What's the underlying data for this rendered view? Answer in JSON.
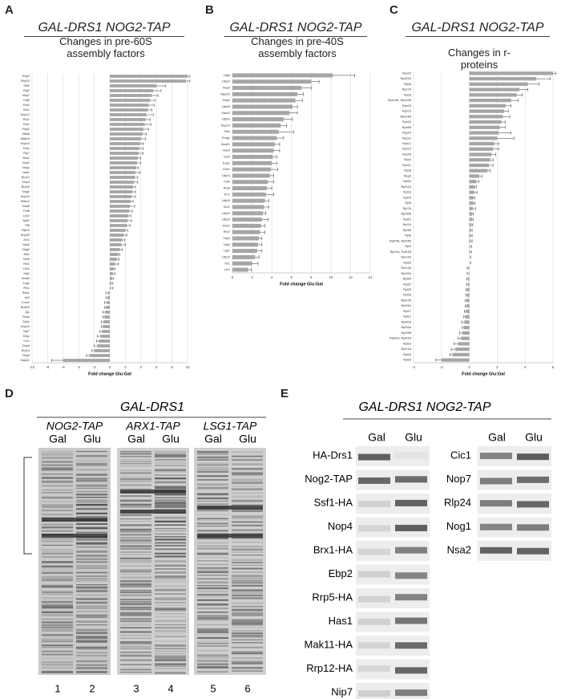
{
  "panel_labels": [
    "A",
    "B",
    "C",
    "D",
    "E"
  ],
  "chart_data": [
    {
      "type": "bar",
      "orientation": "horizontal",
      "title": "GAL-DRS1 NOG2-TAP",
      "subtitle": "Changes in pre-60S assembly factors",
      "xlabel": "Fold change Glu:Gal",
      "color": "#a6a6a6",
      "grid": true,
      "categories": [
        "Ebp2",
        "Dbp10",
        "Ssf1",
        "Rpf2",
        "Nop7",
        "Cbf5",
        "Erb1",
        "Brx1",
        "Nop12",
        "Rrp1",
        "Ytm1",
        "Pwp1",
        "Mak5",
        "Mak16",
        "Nop15",
        "Rrs1",
        "Rlp7",
        "Nsa1",
        "Nop2",
        "Nog1",
        "Has1",
        "Rrp12",
        "Nop4",
        "Rrp15",
        "Nug1",
        "Nop16",
        "Mak11",
        "Nop8",
        "Puf6",
        "Loc1",
        "Spb1",
        "Tif6",
        "Rlp24",
        "Nop53",
        "Arx1",
        "Nsa2",
        "Nog2",
        "Alb1",
        "Mrt4",
        "Rei1",
        "Yvh1",
        "Sqt1",
        "Nmd3",
        "Lsg1",
        "Rix1",
        "Rea1",
        "Ipi3",
        "Ecm1",
        "Bud20",
        "Jjj1",
        "Rsa4",
        "Sda1",
        "Nop10",
        "Nip7",
        "Drg1",
        "Cic1",
        "Dbp9",
        "Rrp14",
        "Rsa3",
        "Mak21"
      ],
      "values": [
        10.0,
        9.8,
        6.0,
        5.6,
        5.4,
        5.2,
        5.0,
        4.9,
        4.7,
        4.6,
        4.5,
        4.3,
        4.2,
        4.0,
        3.9,
        3.8,
        3.7,
        3.6,
        3.5,
        3.4,
        3.3,
        3.2,
        3.1,
        3.0,
        2.9,
        2.8,
        2.7,
        2.6,
        2.5,
        2.4,
        2.3,
        2.2,
        2.0,
        1.8,
        1.6,
        1.5,
        1.3,
        1.1,
        0.9,
        0.7,
        0.5,
        0.4,
        0.3,
        0.2,
        0.1,
        -0.2,
        -0.3,
        -0.4,
        -0.5,
        -0.6,
        -0.7,
        -0.8,
        -0.9,
        -1.0,
        -1.2,
        -1.4,
        -1.6,
        -2.0,
        -2.6,
        -6.0
      ],
      "errors": [
        0.3,
        0.5,
        1.2,
        1.0,
        0.8,
        0.6,
        0.7,
        0.5,
        0.9,
        0.6,
        0.8,
        0.7,
        0.5,
        0.6,
        0.4,
        0.5,
        0.6,
        0.4,
        0.5,
        0.3,
        0.6,
        0.4,
        0.5,
        0.3,
        0.4,
        0.5,
        0.3,
        0.6,
        0.4,
        0.3,
        0.5,
        0.4,
        0.3,
        0.4,
        0.3,
        0.5,
        0.3,
        0.2,
        0.3,
        0.4,
        0.2,
        0.3,
        0.2,
        0.2,
        0.3,
        0.3,
        0.2,
        0.3,
        0.2,
        0.3,
        0.2,
        0.3,
        0.2,
        0.3,
        0.4,
        0.3,
        0.4,
        0.3,
        0.4,
        1.5
      ],
      "xlim": [
        -10,
        10
      ],
      "xticks": [
        -10,
        -8,
        -6,
        -4,
        -2,
        0,
        2,
        4,
        6,
        8,
        10
      ]
    },
    {
      "type": "bar",
      "orientation": "horizontal",
      "title": "GAL-DRS1 NOG2-TAP",
      "subtitle": "Changes in pre-40S assembly factors",
      "xlabel": "Fold change Glu:Gal",
      "color": "#a6a6a6",
      "grid": true,
      "categories": [
        "Utp8",
        "Utp10",
        "Nop9",
        "Mpp10",
        "Pwp2",
        "Utp30",
        "Sas10",
        "Utp20",
        "Nop14",
        "Sof1",
        "Emg1",
        "Bud21",
        "Noc4",
        "Esf2",
        "Enp1",
        "Dim1",
        "Utp14",
        "Faf1",
        "Rrp9",
        "Krr1",
        "Utp18",
        "Dhr1",
        "Utp21",
        "Utp22",
        "Rok1",
        "Rrp7",
        "Imp4",
        "Utp4",
        "Utp7",
        "Utp15",
        "Tsr1",
        "Ltv1"
      ],
      "values": [
        10.2,
        8.0,
        7.0,
        6.6,
        6.4,
        6.1,
        5.8,
        5.2,
        4.9,
        4.7,
        4.5,
        4.3,
        4.2,
        4.1,
        4.0,
        3.9,
        3.8,
        3.6,
        3.5,
        3.4,
        3.3,
        3.2,
        3.1,
        3.0,
        2.9,
        2.8,
        2.7,
        2.6,
        2.5,
        2.3,
        2.0,
        1.6
      ],
      "errors": [
        2.2,
        0.8,
        1.0,
        0.6,
        0.7,
        0.5,
        0.8,
        0.9,
        0.6,
        1.5,
        0.7,
        0.5,
        0.6,
        0.4,
        0.5,
        0.7,
        0.4,
        0.6,
        0.5,
        0.8,
        0.4,
        0.5,
        0.3,
        0.6,
        0.4,
        0.5,
        0.3,
        0.4,
        0.5,
        0.4,
        0.6,
        0.3
      ],
      "xlim": [
        0,
        14
      ],
      "xticks": [
        0,
        2,
        4,
        6,
        8,
        10,
        12,
        14
      ]
    },
    {
      "type": "bar",
      "orientation": "horizontal",
      "title": "GAL-DRS1 NOG2-TAP",
      "subtitle": "Changes in r-proteins",
      "xlabel": "Fold change Glu:Gal",
      "color": "#a6a6a6",
      "grid": true,
      "categories": [
        "Rps23",
        "Rps22A",
        "Rps5",
        "Rps7A",
        "Rps3",
        "Rps19A, Rps19B",
        "Rps18",
        "Rps13",
        "Rps14B",
        "Rps16",
        "Rps9B",
        "Rps24",
        "Rps12",
        "Rps11",
        "Rps15",
        "Rps28",
        "Rps2",
        "Rps21",
        "Rps8",
        "Rpp0",
        "Rpl30",
        "Rpl31A",
        "Rpl18",
        "Rpl20",
        "Rpl5",
        "Rpl7A",
        "Rpl35B",
        "Rpl10",
        "Rpl2A",
        "Rpl4B",
        "Rpl6",
        "Rpl24A, Rpl24B",
        "Rpl3",
        "Rpl11A, Rpl11B",
        "Rpl14A",
        "Rpl26",
        "Rpl13A",
        "Rpl16A",
        "Rpl8A",
        "Rpl32",
        "Rpl36",
        "Rpl28",
        "Rpl37B",
        "Rpl34A",
        "Rpl17",
        "Rpl12",
        "Rpl40A",
        "Rpl15A",
        "Rpl39B",
        "Rpl41A, Rpl41B",
        "Rpl19",
        "Rpl21A",
        "Rpl43",
        "Rpl29"
      ],
      "values": [
        6.0,
        4.8,
        4.2,
        3.6,
        3.4,
        3.0,
        2.6,
        2.5,
        2.4,
        2.3,
        2.2,
        2.1,
        2.0,
        1.8,
        1.7,
        1.6,
        1.5,
        1.4,
        1.3,
        0.7,
        0.5,
        0.4,
        0.35,
        0.3,
        0.3,
        0.25,
        0.2,
        0.2,
        0.15,
        0.1,
        0.1,
        0.1,
        0.05,
        0.05,
        0,
        0,
        -0.05,
        -0.05,
        -0.1,
        -0.1,
        -0.15,
        -0.15,
        -0.2,
        -0.2,
        -0.25,
        -0.3,
        -0.35,
        -0.4,
        -0.5,
        -0.6,
        -0.8,
        -1.0,
        -1.2,
        -2.0
      ],
      "errors": [
        0.2,
        1.0,
        0.8,
        0.6,
        0.4,
        0.5,
        0.4,
        0.3,
        0.5,
        0.3,
        0.4,
        0.9,
        1.2,
        0.3,
        0.4,
        0.3,
        0.2,
        0.3,
        0.2,
        0.2,
        0.2,
        0.1,
        0.2,
        0.1,
        0.1,
        0.2,
        0.1,
        0.1,
        0.1,
        0.1,
        0.1,
        0.1,
        0.1,
        0.1,
        0.1,
        0.1,
        0.1,
        0.1,
        0.1,
        0.1,
        0.1,
        0.1,
        0.1,
        0.1,
        0.1,
        0.1,
        0.2,
        0.1,
        0.2,
        0.2,
        0.3,
        0.3,
        0.2,
        0.4
      ],
      "xlim": [
        -4,
        6
      ],
      "xticks": [
        -4,
        -2,
        0,
        2,
        4,
        6
      ]
    }
  ],
  "gel_d": {
    "title": "GAL-DRS1",
    "strains": [
      "NOG2-TAP",
      "ARX1-TAP",
      "LSG1-TAP"
    ],
    "conditions": [
      "Gal",
      "Glu",
      "Gal",
      "Glu",
      "Gal",
      "Glu"
    ],
    "lanes": [
      "1",
      "2",
      "3",
      "4",
      "5",
      "6"
    ]
  },
  "blot_e": {
    "title": "GAL-DRS1 NOG2-TAP",
    "conditions": [
      "Gal",
      "Glu"
    ],
    "left_rows": [
      "HA-Drs1",
      "Nog2-TAP",
      "Ssf1-HA",
      "Nop4",
      "Brx1-HA",
      "Ebp2",
      "Rrp5-HA",
      "Has1",
      "Mak11-HA",
      "Rrp12-HA",
      "Nip7"
    ],
    "right_rows": [
      "Cic1",
      "Nop7",
      "Rlp24",
      "Nog1",
      "Nsa2"
    ]
  }
}
